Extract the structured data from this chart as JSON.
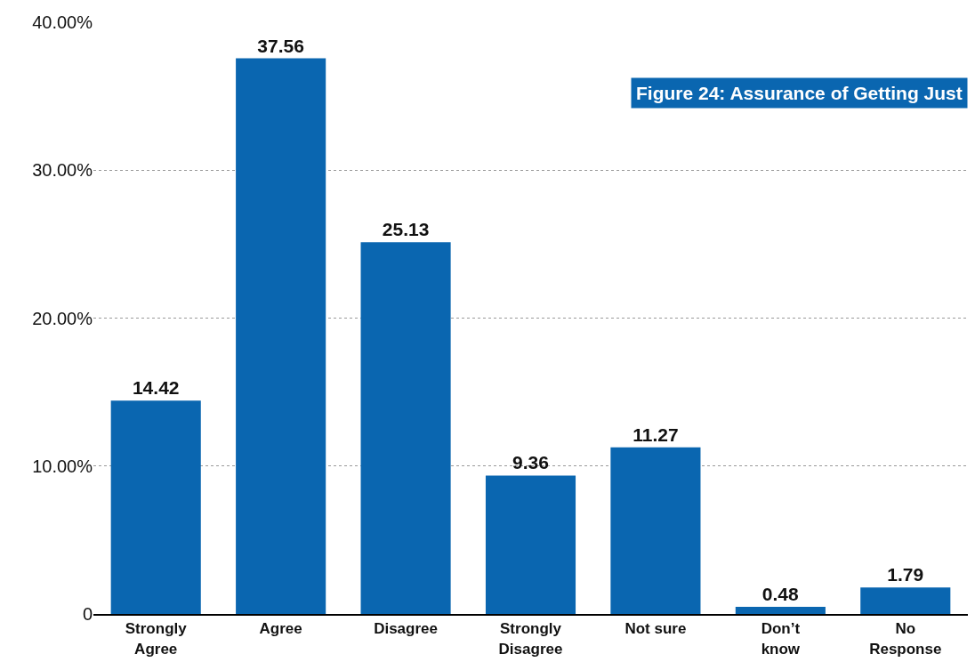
{
  "chart_data": {
    "type": "bar",
    "title": "Figure 24: Assurance of Getting Just",
    "categories": [
      "Strongly Agree",
      "Agree",
      "Disagree",
      "Strongly Disagree",
      "Not sure",
      "Don’t know",
      "No Response"
    ],
    "values": [
      14.42,
      37.56,
      25.13,
      9.36,
      11.27,
      0.48,
      1.79
    ],
    "color": "#0a66b0",
    "data_labels": true,
    "grid": "y",
    "ylim": [
      0,
      40
    ],
    "yticks": [
      0,
      {
        "value": 10,
        "label": "10.00%"
      },
      {
        "value": 20,
        "label": "20.00%"
      },
      {
        "value": 30,
        "label": "30.00%"
      },
      {
        "value": 40,
        "label": "40.00%"
      }
    ]
  }
}
